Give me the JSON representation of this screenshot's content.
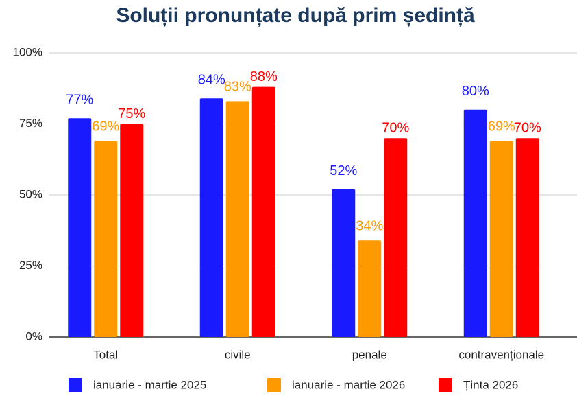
{
  "chart_data": {
    "type": "bar",
    "title": "Soluții pronunțate după prim ședință",
    "categories": [
      "Total",
      "civile",
      "penale",
      "contravenționale"
    ],
    "series": [
      {
        "name": "ianuarie - martie 2025",
        "color": "#1a1aff",
        "values": [
          77,
          84,
          52,
          80
        ],
        "value_labels": [
          "77%",
          "84%",
          "52%",
          "80%"
        ]
      },
      {
        "name": "ianuarie - martie 2026",
        "color": "#ff9900",
        "values": [
          69,
          83,
          34,
          69
        ],
        "value_labels": [
          "69%",
          "83%",
          "34%",
          "69%"
        ]
      },
      {
        "name": "Ținta 2026",
        "color": "#ff0000",
        "values": [
          75,
          88,
          70,
          70
        ],
        "value_labels": [
          "75%",
          "88%",
          "70%",
          "70%"
        ]
      }
    ],
    "ylim": [
      0,
      100
    ],
    "yticks": [
      {
        "value": 0,
        "label": "0%"
      },
      {
        "value": 25,
        "label": "25%"
      },
      {
        "value": 50,
        "label": "50%"
      },
      {
        "value": 75,
        "label": "75%"
      },
      {
        "value": 100,
        "label": "100%"
      }
    ],
    "grid": true
  }
}
